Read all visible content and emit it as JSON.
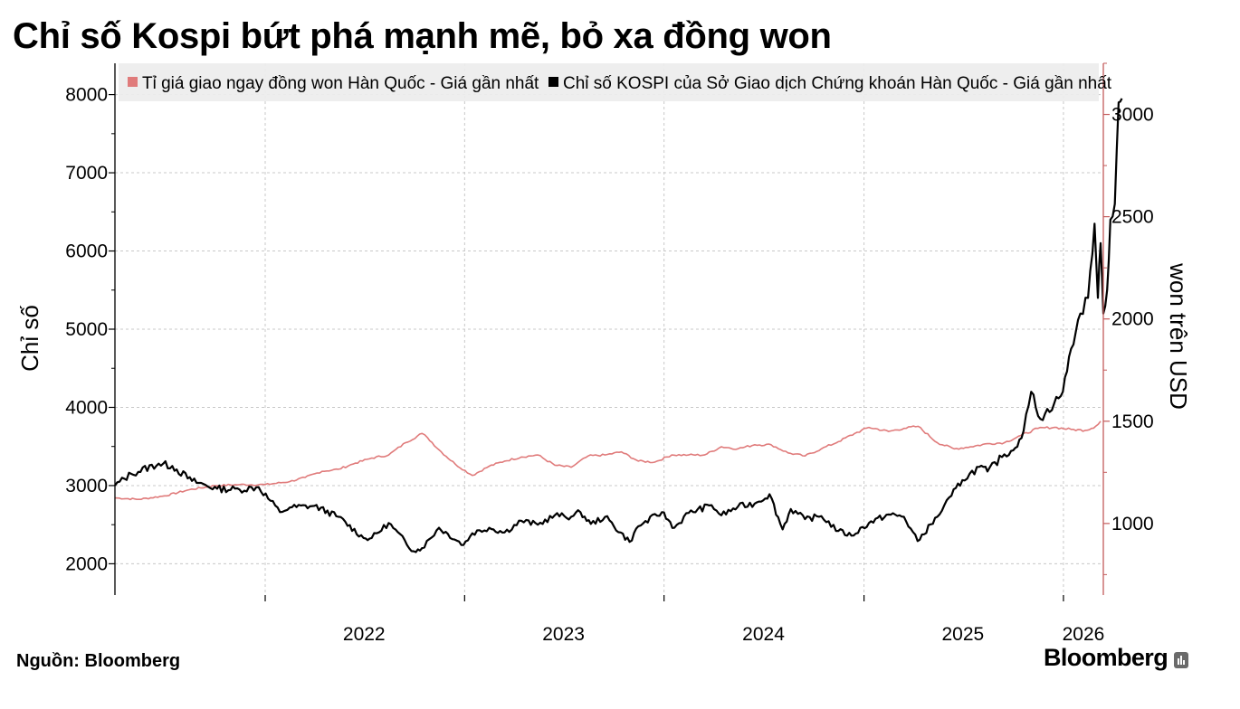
{
  "title": "Chỉ số Kospi bứt phá mạnh mẽ, bỏ xa đồng won",
  "source": "Nguồn:  Bloomberg",
  "brand": "Bloomberg",
  "brand_icon": "bloomberg-terminal-icon",
  "chart_data": {
    "type": "line",
    "title": "Chỉ số Kospi bứt phá mạnh mẽ, bỏ xa đồng won",
    "x_ticks": [
      "2022",
      "2023",
      "2024",
      "2025",
      "2026"
    ],
    "x_range": [
      "2021-04-01",
      "2026-03-15"
    ],
    "y_left": {
      "label": "Chỉ số",
      "range": [
        1600,
        8400
      ],
      "ticks": [
        2000,
        3000,
        4000,
        5000,
        6000,
        7000,
        8000
      ]
    },
    "y_right": {
      "label": "won trên USD",
      "range": [
        650,
        3250
      ],
      "ticks": [
        1000,
        1500,
        2000,
        2500,
        3000
      ]
    },
    "grid": true,
    "legend": "top-left",
    "colors": {
      "won": "#e07b7b",
      "kospi": "#000000",
      "right_axis": "#c45c5c"
    },
    "series": [
      {
        "name": "Tỉ giá giao ngay đồng won Hàn Quốc - Giá gần nhất",
        "axis": "right",
        "points": [
          [
            "2021-04-01",
            1125
          ],
          [
            "2021-05-15",
            1118
          ],
          [
            "2021-07-01",
            1135
          ],
          [
            "2021-08-15",
            1165
          ],
          [
            "2021-10-01",
            1185
          ],
          [
            "2021-11-15",
            1190
          ],
          [
            "2022-01-01",
            1190
          ],
          [
            "2022-02-15",
            1205
          ],
          [
            "2022-03-15",
            1225
          ],
          [
            "2022-04-15",
            1255
          ],
          [
            "2022-05-15",
            1265
          ],
          [
            "2022-06-15",
            1295
          ],
          [
            "2022-07-15",
            1320
          ],
          [
            "2022-08-15",
            1335
          ],
          [
            "2022-09-15",
            1395
          ],
          [
            "2022-10-15",
            1440
          ],
          [
            "2022-10-25",
            1420
          ],
          [
            "2022-11-15",
            1360
          ],
          [
            "2022-12-15",
            1290
          ],
          [
            "2023-01-15",
            1235
          ],
          [
            "2023-02-15",
            1280
          ],
          [
            "2023-03-15",
            1305
          ],
          [
            "2023-04-15",
            1325
          ],
          [
            "2023-05-15",
            1335
          ],
          [
            "2023-06-15",
            1285
          ],
          [
            "2023-07-15",
            1275
          ],
          [
            "2023-08-15",
            1330
          ],
          [
            "2023-09-15",
            1335
          ],
          [
            "2023-10-15",
            1350
          ],
          [
            "2023-11-15",
            1305
          ],
          [
            "2023-12-15",
            1300
          ],
          [
            "2024-01-15",
            1335
          ],
          [
            "2024-02-15",
            1335
          ],
          [
            "2024-03-15",
            1335
          ],
          [
            "2024-04-15",
            1375
          ],
          [
            "2024-05-15",
            1365
          ],
          [
            "2024-06-15",
            1385
          ],
          [
            "2024-07-15",
            1385
          ],
          [
            "2024-08-15",
            1345
          ],
          [
            "2024-09-15",
            1330
          ],
          [
            "2024-10-15",
            1365
          ],
          [
            "2024-11-15",
            1400
          ],
          [
            "2024-12-15",
            1440
          ],
          [
            "2025-01-10",
            1470
          ],
          [
            "2025-02-15",
            1450
          ],
          [
            "2025-03-15",
            1465
          ],
          [
            "2025-04-10",
            1475
          ],
          [
            "2025-05-15",
            1395
          ],
          [
            "2025-06-15",
            1365
          ],
          [
            "2025-07-15",
            1375
          ],
          [
            "2025-08-15",
            1390
          ],
          [
            "2025-09-15",
            1395
          ],
          [
            "2025-10-15",
            1430
          ],
          [
            "2025-11-15",
            1465
          ],
          [
            "2025-12-15",
            1470
          ],
          [
            "2026-01-15",
            1460
          ],
          [
            "2026-02-10",
            1455
          ],
          [
            "2026-03-01",
            1475
          ],
          [
            "2026-03-10",
            1500
          ]
        ]
      },
      {
        "name": "Chỉ số KOSPI của Sở Giao dịch Chứng khoán Hàn Quốc - Giá gần nhất",
        "axis": "left",
        "points": [
          [
            "2021-04-01",
            3000
          ],
          [
            "2021-05-01",
            3150
          ],
          [
            "2021-06-20",
            3280
          ],
          [
            "2021-07-15",
            3250
          ],
          [
            "2021-08-20",
            3060
          ],
          [
            "2021-10-05",
            2960
          ],
          [
            "2021-11-15",
            2950
          ],
          [
            "2021-12-20",
            2980
          ],
          [
            "2022-01-28",
            2660
          ],
          [
            "2022-02-15",
            2720
          ],
          [
            "2022-04-01",
            2740
          ],
          [
            "2022-05-15",
            2600
          ],
          [
            "2022-06-30",
            2330
          ],
          [
            "2022-07-15",
            2330
          ],
          [
            "2022-08-15",
            2520
          ],
          [
            "2022-09-30",
            2160
          ],
          [
            "2022-10-15",
            2200
          ],
          [
            "2022-11-15",
            2460
          ],
          [
            "2022-12-30",
            2240
          ],
          [
            "2023-01-15",
            2390
          ],
          [
            "2023-02-15",
            2460
          ],
          [
            "2023-03-15",
            2400
          ],
          [
            "2023-04-15",
            2550
          ],
          [
            "2023-05-15",
            2500
          ],
          [
            "2023-06-15",
            2620
          ],
          [
            "2023-07-15",
            2600
          ],
          [
            "2023-08-01",
            2660
          ],
          [
            "2023-08-20",
            2510
          ],
          [
            "2023-09-15",
            2600
          ],
          [
            "2023-10-30",
            2280
          ],
          [
            "2023-11-15",
            2480
          ],
          [
            "2023-12-28",
            2660
          ],
          [
            "2024-01-20",
            2460
          ],
          [
            "2024-02-15",
            2650
          ],
          [
            "2024-03-28",
            2750
          ],
          [
            "2024-04-15",
            2620
          ],
          [
            "2024-05-15",
            2730
          ],
          [
            "2024-06-15",
            2770
          ],
          [
            "2024-07-12",
            2890
          ],
          [
            "2024-08-05",
            2440
          ],
          [
            "2024-08-20",
            2700
          ],
          [
            "2024-09-15",
            2570
          ],
          [
            "2024-10-15",
            2610
          ],
          [
            "2024-11-15",
            2420
          ],
          [
            "2024-12-09",
            2360
          ],
          [
            "2025-01-10",
            2520
          ],
          [
            "2025-02-15",
            2630
          ],
          [
            "2025-03-15",
            2600
          ],
          [
            "2025-04-09",
            2290
          ],
          [
            "2025-05-15",
            2600
          ],
          [
            "2025-06-10",
            2870
          ],
          [
            "2025-06-30",
            3070
          ],
          [
            "2025-07-31",
            3240
          ],
          [
            "2025-08-15",
            3180
          ],
          [
            "2025-09-15",
            3400
          ],
          [
            "2025-10-01",
            3450
          ],
          [
            "2025-10-20",
            3700
          ],
          [
            "2025-11-03",
            4200
          ],
          [
            "2025-11-20",
            3850
          ],
          [
            "2025-12-15",
            4050
          ],
          [
            "2025-12-31",
            4200
          ],
          [
            "2026-01-15",
            4750
          ],
          [
            "2026-02-01",
            5200
          ],
          [
            "2026-02-15",
            5400
          ],
          [
            "2026-02-27",
            6350
          ],
          [
            "2026-03-05",
            5400
          ],
          [
            "2026-03-10",
            6100
          ],
          [
            "2026-03-15",
            5200
          ],
          [
            "2026-03-22",
            5500
          ],
          [
            "2026-03-28",
            6400
          ],
          [
            "2026-04-05",
            6600
          ],
          [
            "2026-04-12",
            7900
          ],
          [
            "2026-04-18",
            7950
          ]
        ]
      }
    ]
  }
}
